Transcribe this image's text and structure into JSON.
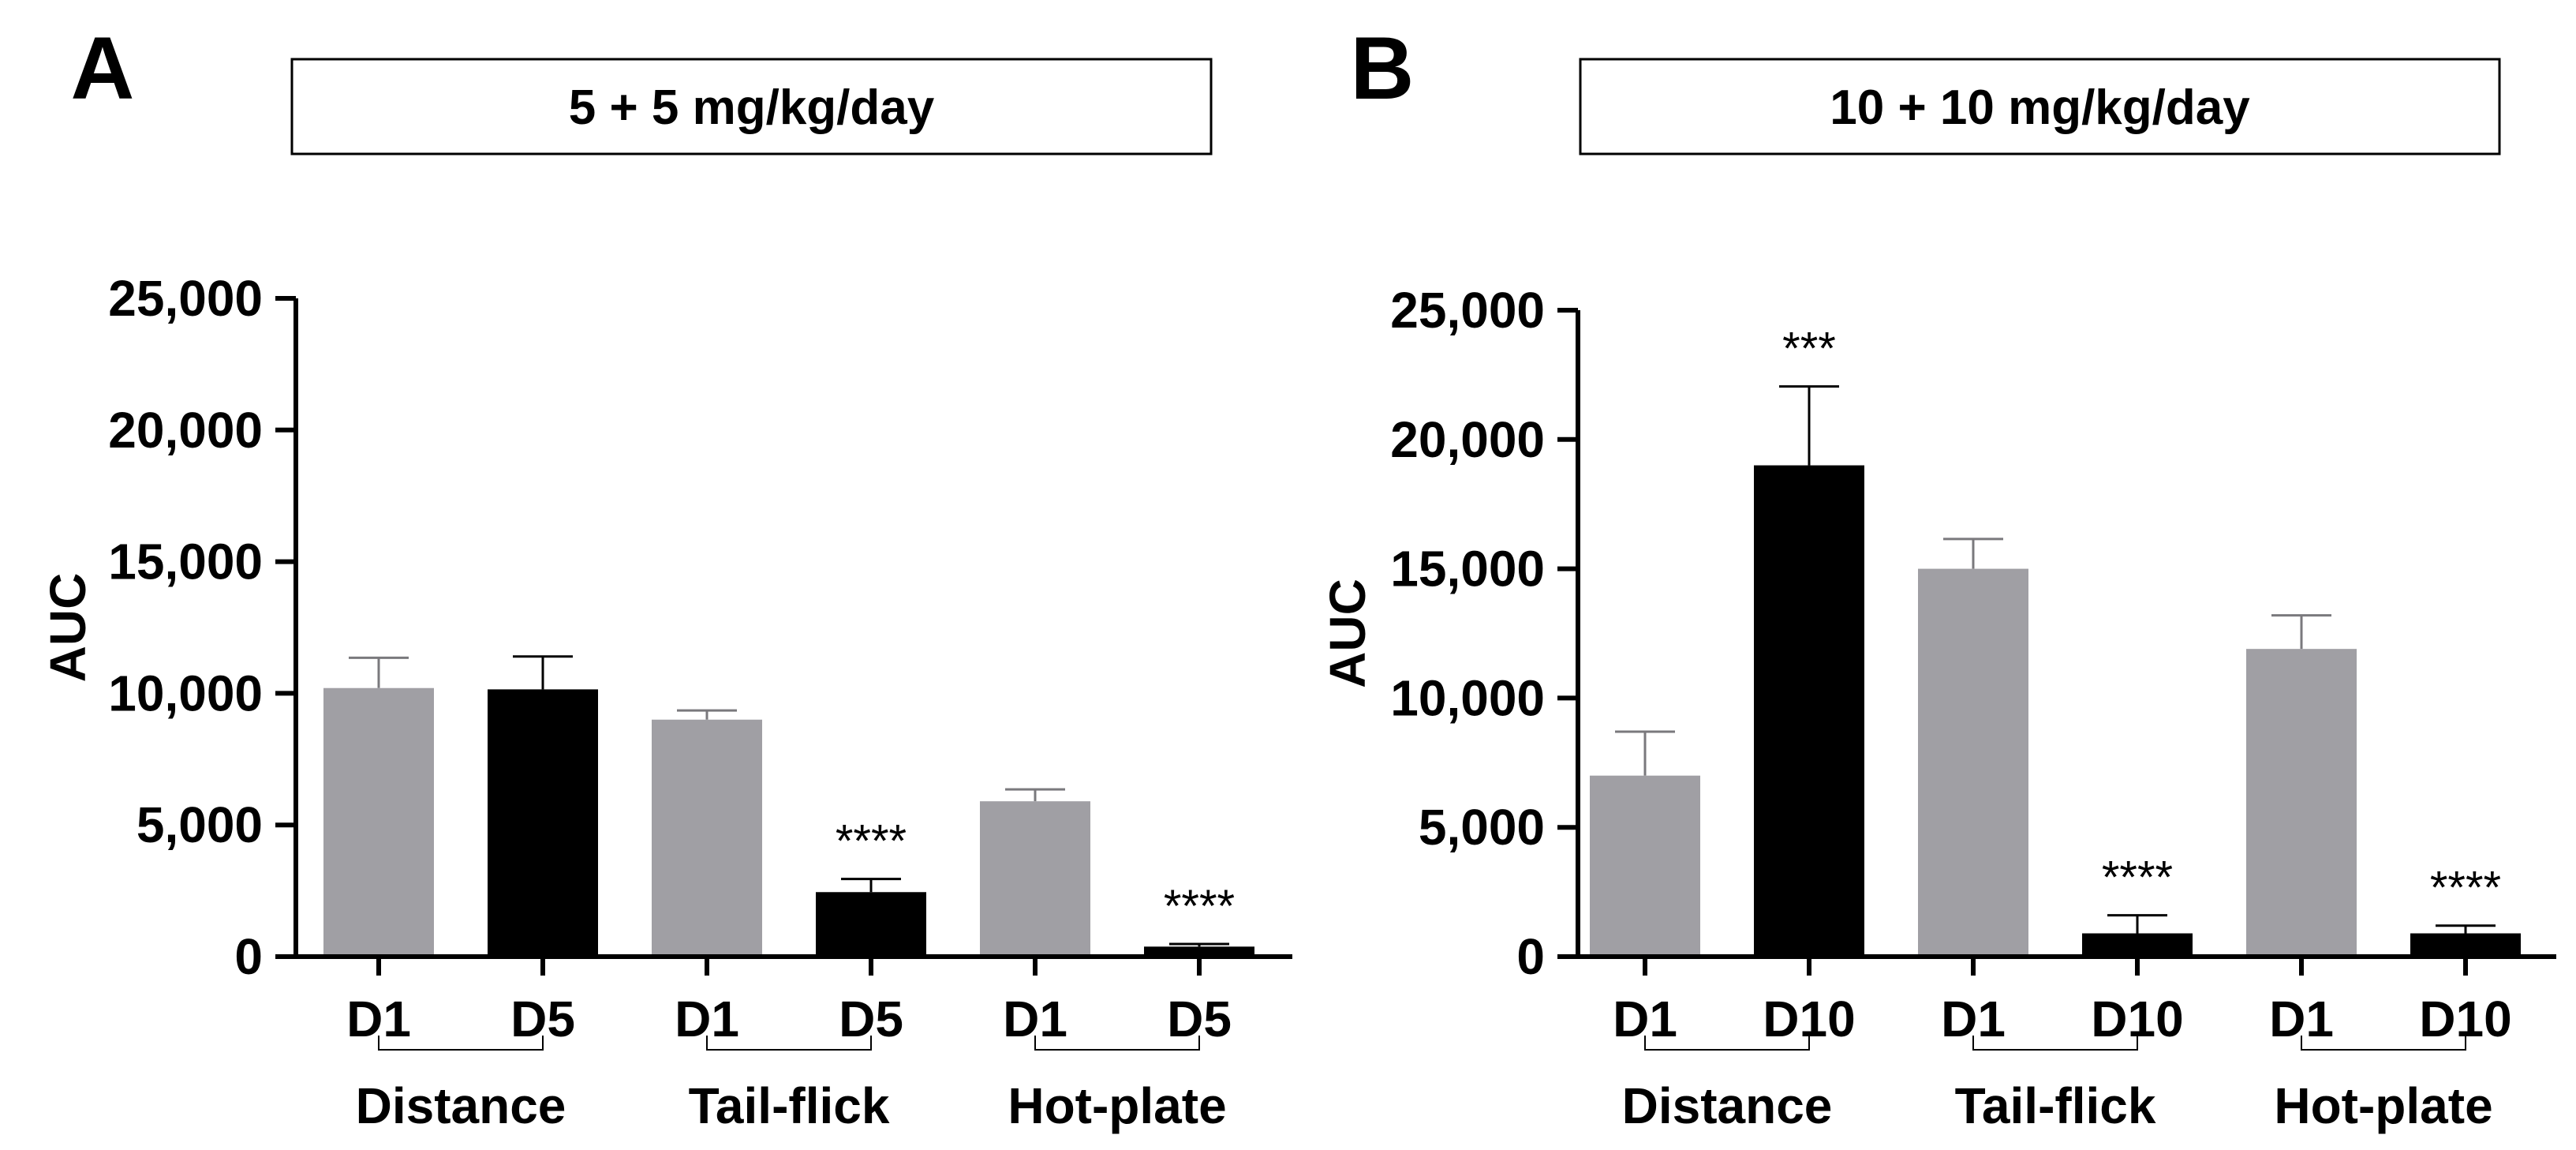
{
  "chart_data": [
    {
      "type": "bar",
      "panel_letter": "A",
      "title": "5 + 5 mg/kg/day",
      "ylabel": "AUC",
      "ylim": [
        0,
        25000
      ],
      "yticks": [
        0,
        5000,
        10000,
        15000,
        20000,
        25000
      ],
      "ytick_labels": [
        "0",
        "5,000",
        "10,000",
        "15,000",
        "20,000",
        "25,000"
      ],
      "categories": [
        "D1",
        "D5",
        "D1",
        "D5",
        "D1",
        "D5"
      ],
      "groups": [
        "Distance",
        "Tail-flick",
        "Hot-plate"
      ],
      "values": [
        10200,
        10150,
        9000,
        2450,
        5900,
        380
      ],
      "errors": [
        1150,
        1250,
        350,
        500,
        450,
        100
      ],
      "colors": [
        "#a09fa4",
        "#000000",
        "#a09fa4",
        "#000000",
        "#a09fa4",
        "#000000"
      ],
      "annotations": [
        "",
        "",
        "",
        "****",
        "",
        "****"
      ]
    },
    {
      "type": "bar",
      "panel_letter": "B",
      "title": "10 + 10 mg/kg/day",
      "ylabel": "AUC",
      "ylim": [
        0,
        25000
      ],
      "yticks": [
        0,
        5000,
        10000,
        15000,
        20000,
        25000
      ],
      "ytick_labels": [
        "0",
        "5,000",
        "10,000",
        "15,000",
        "20,000",
        "25,000"
      ],
      "categories": [
        "D1",
        "D10",
        "D1",
        "D10",
        "D1",
        "D10"
      ],
      "groups": [
        "Distance",
        "Tail-flick",
        "Hot-plate"
      ],
      "values": [
        7000,
        19000,
        15000,
        900,
        11900,
        900
      ],
      "errors": [
        1700,
        3050,
        1150,
        700,
        1300,
        300
      ],
      "colors": [
        "#a09fa4",
        "#000000",
        "#a09fa4",
        "#000000",
        "#a09fa4",
        "#000000"
      ],
      "annotations": [
        "",
        "***",
        "",
        "****",
        "",
        "****"
      ]
    }
  ]
}
